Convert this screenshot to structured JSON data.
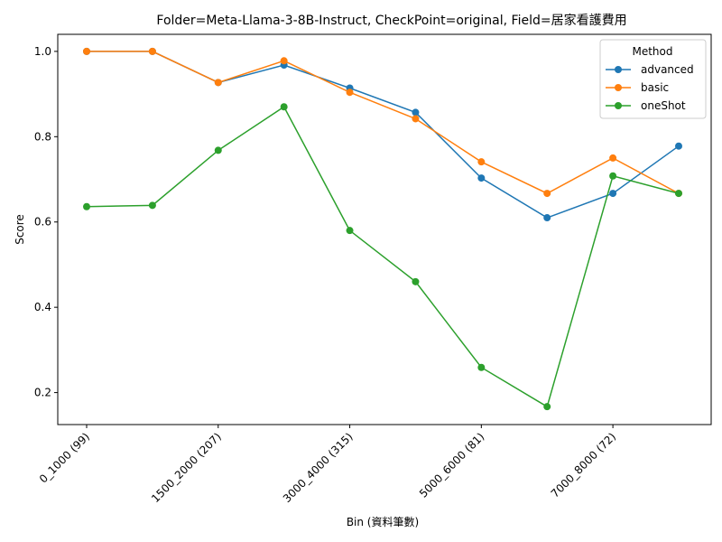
{
  "chart_data": {
    "type": "line",
    "title": "Folder=Meta-Llama-3-8B-Instruct, CheckPoint=original, Field=居家看護費用",
    "xlabel": "Bin (資料筆數)",
    "ylabel": "Score",
    "x_tick_labels": [
      "0_1000 (99)",
      "1500_2000 (207)",
      "3000_4000 (315)",
      "5000_6000 (81)",
      "7000_8000 (72)"
    ],
    "x_tick_positions": [
      0,
      2,
      4,
      6,
      8
    ],
    "x_count": 10,
    "ylim": [
      0.125,
      1.04
    ],
    "y_ticks": [
      0.2,
      0.4,
      0.6,
      0.8,
      1.0
    ],
    "y_tick_labels": [
      "0.2",
      "0.4",
      "0.6",
      "0.8",
      "1.0"
    ],
    "grid": false,
    "legend": {
      "title": "Method",
      "placement": "top-right"
    },
    "series": [
      {
        "name": "advanced",
        "color": "#1f77b4",
        "values": [
          1.0,
          1.0,
          0.927,
          0.968,
          0.914,
          0.857,
          0.703,
          0.61,
          0.667,
          0.778
        ]
      },
      {
        "name": "basic",
        "color": "#ff7f0e",
        "values": [
          1.0,
          1.0,
          0.927,
          0.978,
          0.904,
          0.842,
          0.741,
          0.667,
          0.75,
          0.667
        ]
      },
      {
        "name": "oneShot",
        "color": "#2ca02c",
        "values": [
          0.636,
          0.639,
          0.768,
          0.87,
          0.58,
          0.46,
          0.259,
          0.167,
          0.708,
          0.667
        ]
      }
    ]
  }
}
